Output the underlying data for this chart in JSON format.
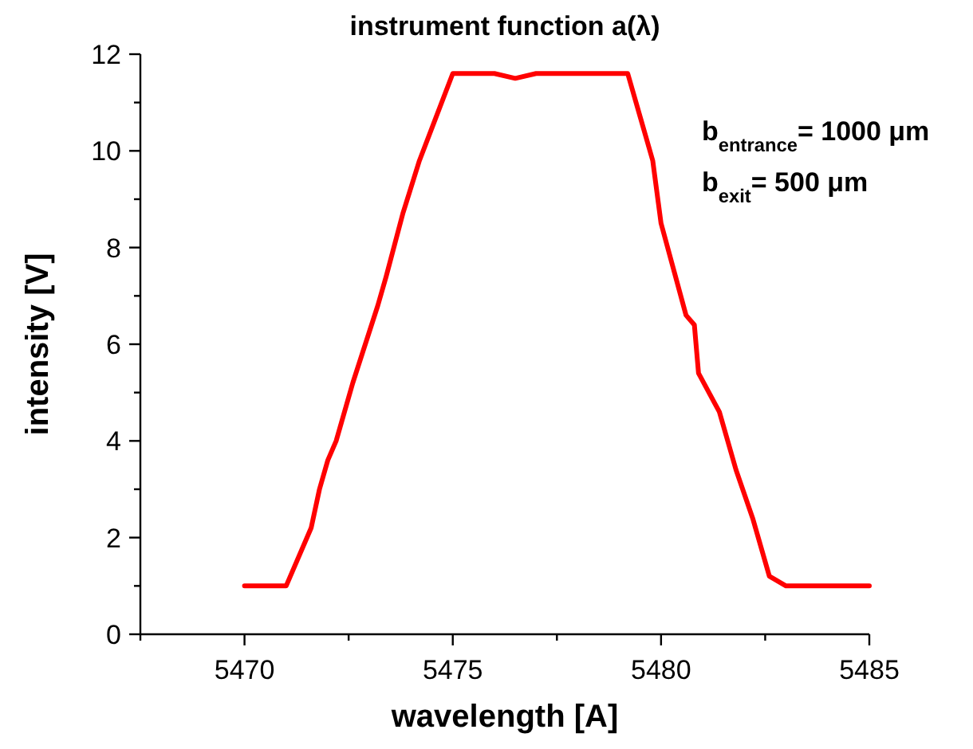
{
  "chart_data": {
    "type": "line",
    "title": "instrument function a(λ)",
    "xlabel": "wavelength [A]",
    "ylabel": "intensity [V]",
    "annotations": [
      "b$_{entrance}$= 1000 μm",
      "b$_{exit}$= 500 μm"
    ],
    "xlim": [
      5467.5,
      5485
    ],
    "ylim": [
      0,
      12
    ],
    "xticks": [
      {
        "value": 5467.5,
        "label": null
      },
      5470,
      {
        "value": 5472.5,
        "label": null
      },
      5475,
      {
        "value": 5477.5,
        "label": null
      },
      5480,
      {
        "value": 5482.5,
        "label": null
      },
      5485
    ],
    "yticks": [
      0,
      {
        "value": 1,
        "label": null
      },
      2,
      {
        "value": 3,
        "label": null
      },
      4,
      {
        "value": 5,
        "label": null
      },
      6,
      {
        "value": 7,
        "label": null
      },
      8,
      {
        "value": 9,
        "label": null
      },
      10,
      {
        "value": 11,
        "label": null
      },
      12
    ],
    "grid": false,
    "marker": "none",
    "line_style": "solid",
    "series": [
      {
        "color": "#ff0000",
        "x": [
          5470,
          5471,
          5471.6,
          5471.8,
          5472,
          5472.2,
          5472.6,
          5473.2,
          5473.4,
          5473.8,
          5474.2,
          5474.6,
          5475,
          5476,
          5476.5,
          5477,
          5479.2,
          5479.5,
          5479.8,
          5480,
          5480.6,
          5480.8,
          5480.9,
          5481.4,
          5481.8,
          5482.2,
          5482.6,
          5483,
          5485
        ],
        "values": [
          1,
          1,
          2.2,
          3,
          3.6,
          4,
          5.2,
          6.8,
          7.4,
          8.7,
          9.8,
          10.7,
          11.6,
          11.6,
          11.5,
          11.6,
          11.6,
          10.7,
          9.8,
          8.5,
          6.6,
          6.4,
          5.4,
          4.6,
          3.4,
          2.4,
          1.2,
          1,
          1
        ]
      }
    ]
  }
}
